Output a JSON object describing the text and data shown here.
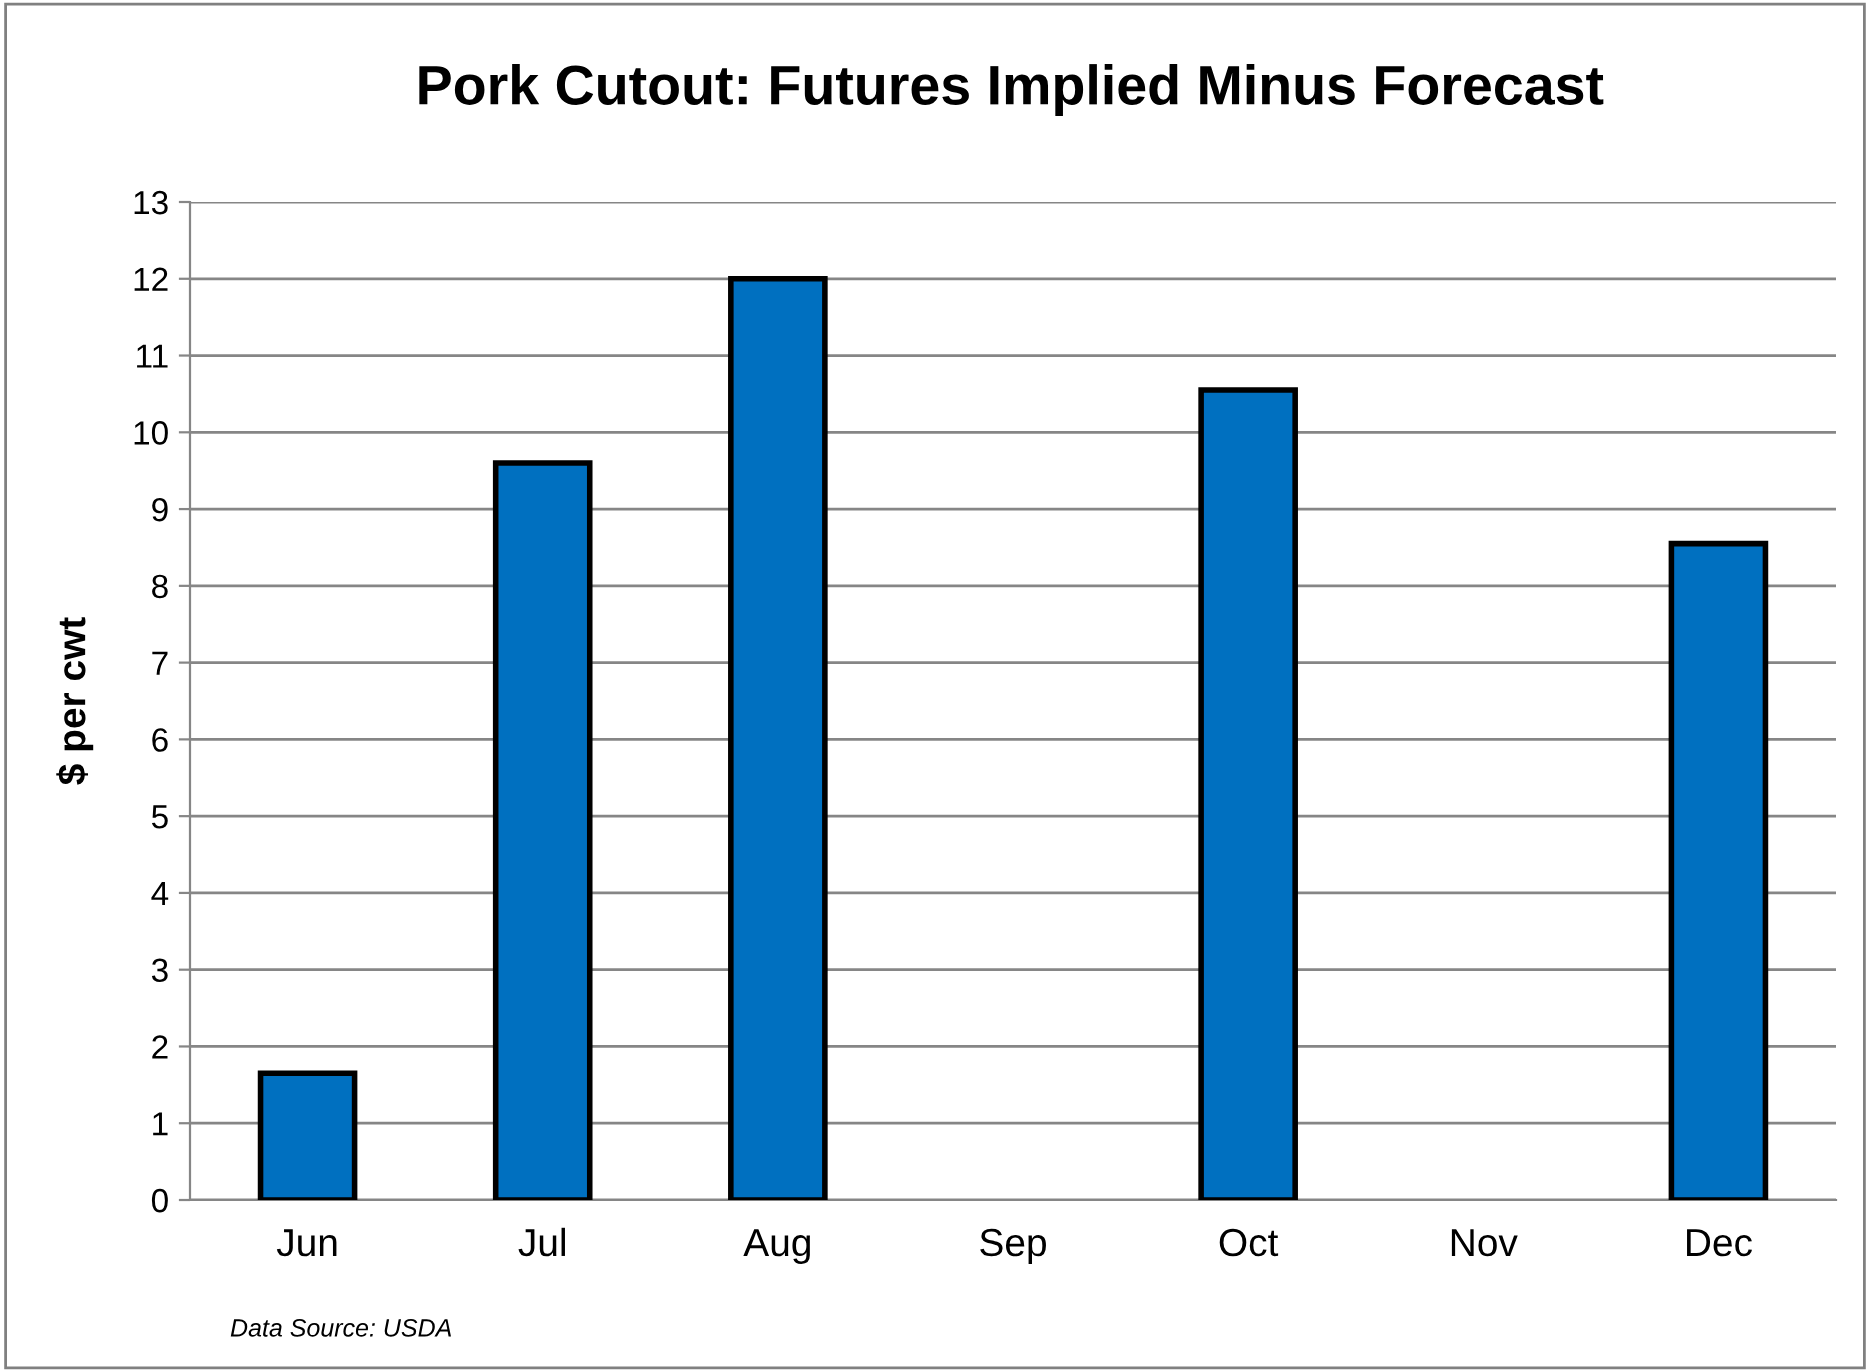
{
  "chart_data": {
    "type": "bar",
    "title": "Pork Cutout: Futures Implied Minus Forecast",
    "ylabel": "$ per cwt",
    "categories": [
      "Jun",
      "Jul",
      "Aug",
      "Sep",
      "Oct",
      "Nov",
      "Dec"
    ],
    "values": [
      1.65,
      9.6,
      12.0,
      null,
      10.55,
      null,
      8.55
    ],
    "color": "#0070c0",
    "ylim": [
      0,
      13
    ],
    "yticks": [
      0,
      1,
      2,
      3,
      4,
      5,
      6,
      7,
      8,
      9,
      10,
      11,
      12,
      13
    ],
    "grid": "y",
    "annotations": [
      "Data Source: USDA"
    ]
  }
}
